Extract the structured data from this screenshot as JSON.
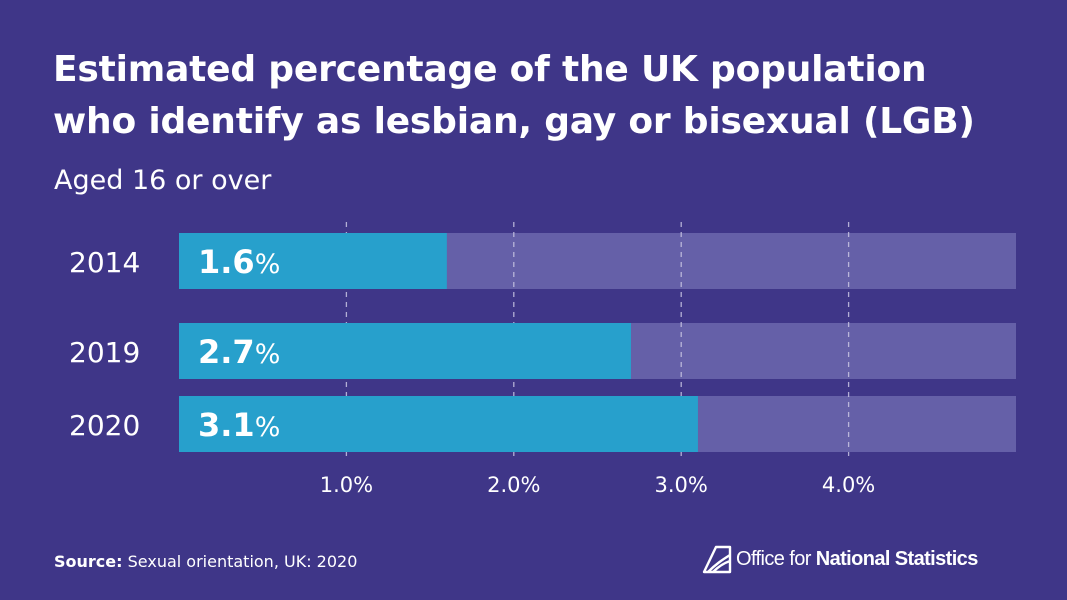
{
  "header": {
    "title_line1": "Estimated percentage of the UK population",
    "title_line2": "who identify as lesbian, gay or bisexual (LGB)",
    "subtitle": "Aged 16 or over"
  },
  "footer": {
    "source_label": "Source:",
    "source_text": "Sexual orientation, UK: 2020",
    "logo_text_regular": "Office for",
    "logo_text_bold": "National Statistics"
  },
  "colors": {
    "background": "#3f3688",
    "bar_fill": "#27a0cc",
    "bar_track": "#6560a8",
    "text": "#ffffff",
    "gridline": "#c8c5e3"
  },
  "chart_data": {
    "type": "bar",
    "orientation": "horizontal",
    "categories": [
      "2014",
      "2019",
      "2020"
    ],
    "values": [
      1.6,
      2.7,
      3.1
    ],
    "value_labels": [
      {
        "number": "1.6",
        "unit": "%"
      },
      {
        "number": "2.7",
        "unit": "%"
      },
      {
        "number": "3.1",
        "unit": "%"
      }
    ],
    "title": "Estimated percentage of the UK population who identify as lesbian, gay or bisexual (LGB)",
    "subtitle": "Aged 16 or over",
    "xlabel": "",
    "ylabel": "",
    "xlim": [
      0,
      5
    ],
    "x_ticks": [
      1,
      2,
      3,
      4
    ],
    "x_tick_labels": [
      "1.0%",
      "2.0%",
      "3.0%",
      "4.0%"
    ],
    "grid": true,
    "grid_style": "dashed vertical",
    "legend": "none"
  }
}
